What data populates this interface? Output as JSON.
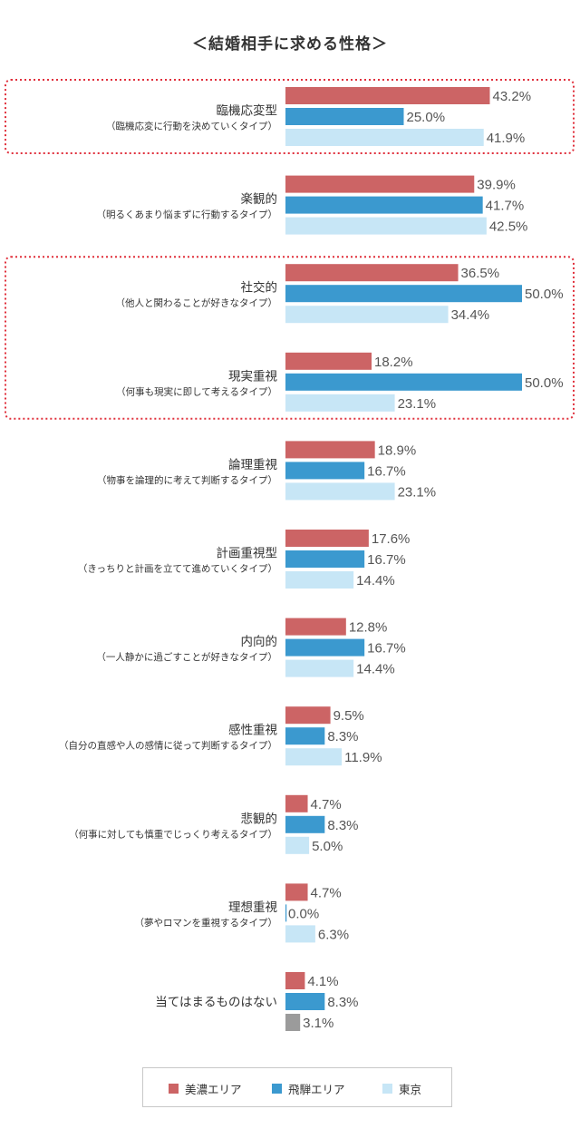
{
  "colors": {
    "mino": "#cc6465",
    "hida": "#3b99cf",
    "tokyo": "#c7e6f6",
    "tokyo_none": "#9b9b9b",
    "highlight": "#e0303c"
  },
  "legend": {
    "mino": "美濃エリア",
    "hida": "飛騨エリア",
    "tokyo": "東京"
  },
  "chart_data": {
    "type": "bar",
    "orientation": "horizontal",
    "title": "＜結婚相手に求める性格＞",
    "xlim": [
      0,
      50
    ],
    "grid": false,
    "legend_placement": "bottom",
    "categories": [
      {
        "label": "臨機応変型",
        "sub": "（臨機応変に行動を決めていくタイプ）"
      },
      {
        "label": "楽観的",
        "sub": "（明るくあまり悩まずに行動するタイプ）"
      },
      {
        "label": "社交的",
        "sub": "（他人と関わることが好きなタイプ）"
      },
      {
        "label": "現実重視",
        "sub": "（何事も現実に即して考えるタイプ）"
      },
      {
        "label": "論理重視",
        "sub": "（物事を論理的に考えて判断するタイプ）"
      },
      {
        "label": "計画重視型",
        "sub": "（きっちりと計画を立てて進めていくタイプ）"
      },
      {
        "label": "内向的",
        "sub": "（一人静かに過ごすことが好きなタイプ）"
      },
      {
        "label": "感性重視",
        "sub": "（自分の直感や人の感情に従って判断するタイプ）"
      },
      {
        "label": "悲観的",
        "sub": "（何事に対しても慎重でじっくり考えるタイプ）"
      },
      {
        "label": "理想重視",
        "sub": "（夢やロマンを重視するタイプ）"
      },
      {
        "label": "当てはまるものはない",
        "sub": ""
      }
    ],
    "series": [
      {
        "name": "美濃エリア",
        "key": "mino",
        "values": [
          43.2,
          39.9,
          36.5,
          18.2,
          18.9,
          17.6,
          12.8,
          9.5,
          4.7,
          4.7,
          4.1
        ],
        "labels": [
          "43.2%",
          "39.9%",
          "36.5%",
          "18.2%",
          "18.9%",
          "17.6%",
          "12.8%",
          "9.5%",
          "4.7%",
          "4.7%",
          "4.1%"
        ]
      },
      {
        "name": "飛騨エリア",
        "key": "hida",
        "values": [
          25.0,
          41.7,
          50.0,
          50.0,
          16.7,
          16.7,
          16.7,
          8.3,
          8.3,
          0.0,
          8.3
        ],
        "labels": [
          "25.0%",
          "41.7%",
          "50.0%",
          "50.0%",
          "16.7%",
          "16.7%",
          "16.7%",
          "8.3%",
          "8.3%",
          "0.0%",
          "8.3%"
        ]
      },
      {
        "name": "東京",
        "key": "tokyo",
        "values": [
          41.9,
          42.5,
          34.4,
          23.1,
          23.1,
          14.4,
          14.4,
          11.9,
          5.0,
          6.3,
          3.1
        ],
        "labels": [
          "41.9%",
          "42.5%",
          "34.4%",
          "23.1%",
          "23.1%",
          "14.4%",
          "14.4%",
          "11.9%",
          "5.0%",
          "6.3%",
          "3.1%"
        ]
      }
    ],
    "highlighted_groups": [
      [
        0
      ],
      [
        2,
        3
      ]
    ]
  }
}
